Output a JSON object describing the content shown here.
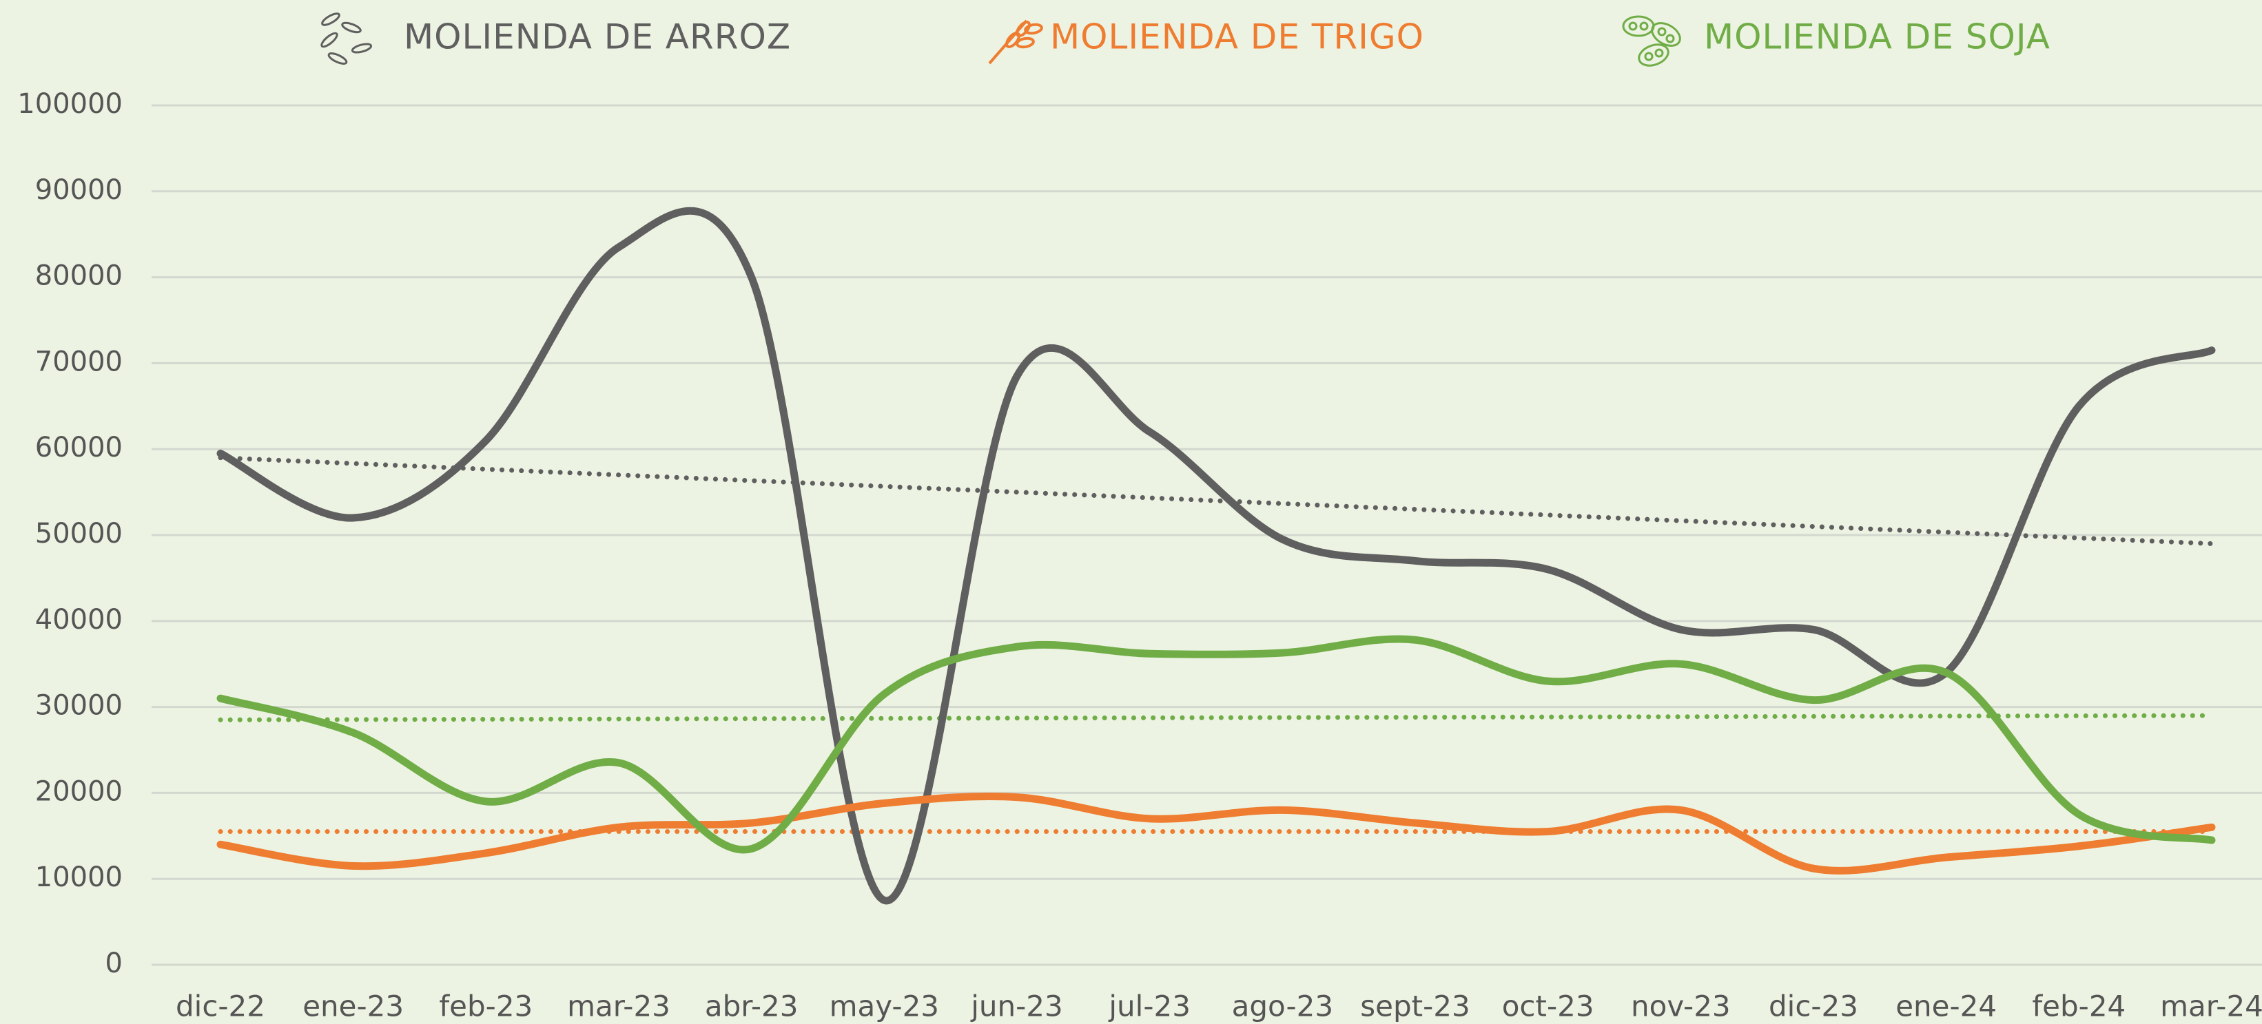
{
  "chart_data": {
    "type": "line",
    "categories": [
      "dic-22",
      "ene-23",
      "feb-23",
      "mar-23",
      "abr-23",
      "may-23",
      "jun-23",
      "jul-23",
      "ago-23",
      "sept-23",
      "oct-23",
      "nov-23",
      "dic-23",
      "ene-24",
      "feb-24",
      "mar-24"
    ],
    "series": [
      {
        "name": "MOLIENDA DE ARROZ",
        "color": "#5f5f60",
        "values": [
          59500,
          52000,
          61000,
          83500,
          80000,
          7500,
          68500,
          62000,
          49500,
          47000,
          46000,
          39000,
          39000,
          34000,
          65000,
          71500
        ],
        "trend": [
          59000,
          49000
        ]
      },
      {
        "name": "MOLIENDA DE TRIGO",
        "color": "#ee7d31",
        "values": [
          14000,
          11500,
          13000,
          16000,
          16500,
          18800,
          19500,
          17000,
          18000,
          16500,
          15500,
          18000,
          11200,
          12500,
          13800,
          16000
        ],
        "trend": [
          15500,
          15500
        ]
      },
      {
        "name": "MOLIENDA DE SOJA",
        "color": "#70ad47",
        "values": [
          31000,
          27000,
          19000,
          23500,
          13500,
          31500,
          37000,
          36200,
          36300,
          37800,
          33000,
          35000,
          30800,
          34000,
          17500,
          14500
        ],
        "trend": [
          28500,
          29000
        ]
      }
    ],
    "ylim": [
      0,
      100000
    ],
    "yticks": [
      0,
      10000,
      20000,
      30000,
      40000,
      50000,
      60000,
      70000,
      80000,
      90000,
      100000
    ],
    "grid": true,
    "legend": "top",
    "background": "#edf3e2"
  }
}
